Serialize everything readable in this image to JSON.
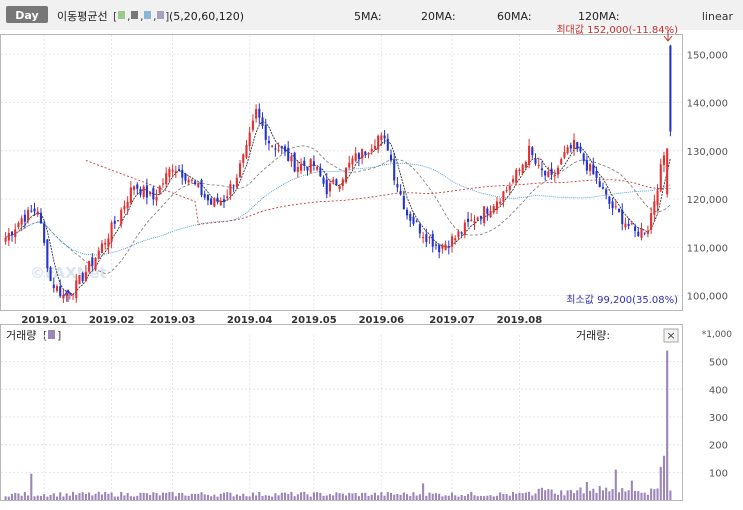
{
  "toolbar": {
    "period_tab": "Day",
    "ma_label": "이동평균선",
    "ma_params": "(5,20,60,120)",
    "ma5_label": "5MA:",
    "ma20_label": "20MA:",
    "ma60_label": "60MA:",
    "ma120_label": "120MA:",
    "scale_label": "linear"
  },
  "colors": {
    "up": "#e03030",
    "down": "#2233cc",
    "volume_bar": "#9b86b8",
    "ma5": "#333333",
    "ma20": "#888888",
    "ma60": "#4aa0d8",
    "ma120": "#c04040",
    "max_text": "#c03030",
    "min_text": "#3030b0"
  },
  "price_panel": {
    "max_annotation": "최대값 152,000(-11.84%)",
    "min_annotation": "최소값 99,200(35.08%)",
    "watermark": "©FAXNet"
  },
  "volume_panel": {
    "title": "거래량",
    "legend_right": "거래량:",
    "unit_label": "*1,000",
    "close_icon": "×"
  },
  "chart_data": [
    {
      "type": "candlestick",
      "title": "",
      "x_tick_labels": [
        "2019.01",
        "2019.02",
        "2019.03",
        "2019.04",
        "2019.05",
        "2019.06",
        "2019.07",
        "2019.08"
      ],
      "y_tick_labels": [
        "100,000",
        "110,000",
        "120,000",
        "130,000",
        "140,000",
        "150,000"
      ],
      "ylim": [
        97000,
        154000
      ],
      "max_value": 152000,
      "min_value": 99200,
      "moving_averages": [
        "5MA",
        "20MA",
        "60MA",
        "120MA"
      ],
      "anchors_close": [
        [
          0,
          112000
        ],
        [
          5,
          116000
        ],
        [
          10,
          118000
        ],
        [
          14,
          103000
        ],
        [
          18,
          100000
        ],
        [
          22,
          102000
        ],
        [
          28,
          108000
        ],
        [
          34,
          115000
        ],
        [
          40,
          123000
        ],
        [
          46,
          120000
        ],
        [
          52,
          127000
        ],
        [
          56,
          125000
        ],
        [
          60,
          122000
        ],
        [
          64,
          119000
        ],
        [
          68,
          120000
        ],
        [
          72,
          125000
        ],
        [
          75,
          130000
        ],
        [
          78,
          138000
        ],
        [
          82,
          132000
        ],
        [
          86,
          130000
        ],
        [
          90,
          127000
        ],
        [
          96,
          127000
        ],
        [
          100,
          122000
        ],
        [
          104,
          124000
        ],
        [
          108,
          128000
        ],
        [
          112,
          130000
        ],
        [
          116,
          133000
        ],
        [
          119,
          131000
        ],
        [
          121,
          125000
        ],
        [
          125,
          117000
        ],
        [
          130,
          113000
        ],
        [
          135,
          110000
        ],
        [
          140,
          112000
        ],
        [
          146,
          116000
        ],
        [
          150,
          118000
        ],
        [
          156,
          122000
        ],
        [
          160,
          126000
        ],
        [
          163,
          130000
        ],
        [
          166,
          126000
        ],
        [
          170,
          124000
        ],
        [
          174,
          129000
        ],
        [
          177,
          131000
        ],
        [
          180,
          128000
        ],
        [
          184,
          124000
        ],
        [
          188,
          119000
        ],
        [
          192,
          116000
        ],
        [
          196,
          113000
        ],
        [
          200,
          114000
        ],
        [
          202,
          120000
        ],
        [
          205,
          129000
        ],
        [
          207,
          134000
        ]
      ],
      "volume_unit": "thousand shares",
      "volume_y_tick_labels": [
        "100",
        "200",
        "300",
        "400",
        "500"
      ],
      "volume_ylim": [
        0,
        560
      ],
      "volume_spikes": [
        [
          8,
          95
        ],
        [
          130,
          60
        ],
        [
          181,
          65
        ],
        [
          190,
          110
        ],
        [
          195,
          70
        ],
        [
          204,
          120
        ],
        [
          205,
          160
        ],
        [
          206,
          540
        ]
      ]
    }
  ]
}
